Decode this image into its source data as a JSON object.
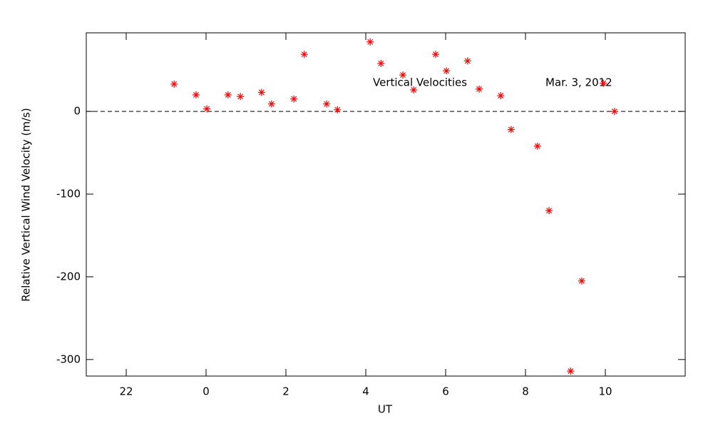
{
  "chart_data": {
    "type": "scatter",
    "xlabel": "UT",
    "ylabel": "Relative Vertical Wind Velocity (m/s)",
    "annotations": [
      "Vertical Velocities",
      "Mar. 3, 2012"
    ],
    "series": [
      {
        "color": "#ff0000",
        "x": [
          -0.8,
          -0.25,
          0.02,
          0.55,
          0.86,
          1.39,
          1.64,
          2.2,
          2.46,
          3.02,
          3.29,
          4.11,
          4.38,
          4.93,
          5.2,
          5.75,
          6.02,
          6.55,
          6.84,
          7.38,
          7.64,
          8.3,
          8.59,
          9.13,
          9.41,
          9.95,
          10.23
        ],
        "values": [
          33,
          20,
          3,
          20,
          18,
          23,
          9,
          15,
          69,
          9,
          2,
          84,
          58,
          44,
          26,
          69,
          49,
          61,
          27,
          19,
          -22,
          -42,
          -120,
          -314,
          -205,
          34,
          0
        ]
      }
    ],
    "xlim": [
      -3,
      12
    ],
    "xticks": [
      {
        "value": -2,
        "label": "22"
      },
      0,
      2,
      4,
      6,
      8,
      10
    ],
    "ylim": [
      -320,
      95
    ],
    "yticks": [
      0,
      -100,
      -200,
      -300
    ],
    "zero_line": true
  }
}
